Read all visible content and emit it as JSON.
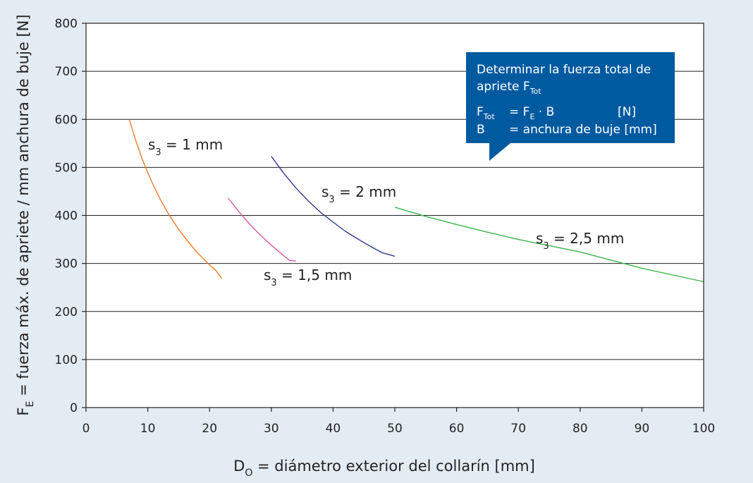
{
  "chart_data": {
    "type": "line",
    "xlabel": "D",
    "xlabel_sub": "O",
    "xlabel_rest": " = diámetro exterior del collarín [mm]",
    "ylabel": "F",
    "ylabel_sub": "E",
    "ylabel_rest": " = fuerza máx. de apriete / mm anchura de buje [N]",
    "xlim": [
      0,
      100
    ],
    "ylim": [
      0,
      800
    ],
    "x_ticks": [
      "0",
      "10",
      "20",
      "30",
      "40",
      "50",
      "60",
      "70",
      "80",
      "90",
      "100"
    ],
    "y_ticks": [
      "0",
      "100",
      "200",
      "300",
      "400",
      "500",
      "600",
      "700",
      "800"
    ],
    "grid": "horizontal",
    "series": [
      {
        "name": "s3 = 1 mm",
        "label_main": "s",
        "label_sub": "3",
        "label_rest": " = 1 mm",
        "color": "#f07c2a",
        "x": [
          7,
          8,
          9,
          10,
          11,
          12,
          13,
          14,
          15,
          16,
          17,
          18,
          19,
          20,
          21,
          22
        ],
        "y": [
          600,
          558,
          521,
          489,
          460,
          434,
          411,
          390,
          371,
          354,
          338,
          323,
          310,
          297,
          286,
          268
        ]
      },
      {
        "name": "s3 = 1,5 mm",
        "label_main": "s",
        "label_sub": "3",
        "label_rest": " = 1,5 mm",
        "color": "#d65aa8",
        "x": [
          23,
          24,
          25,
          26,
          27,
          28,
          29,
          30,
          31,
          32,
          33,
          34
        ],
        "y": [
          436,
          420,
          404,
          389,
          375,
          362,
          350,
          338,
          327,
          316,
          306,
          305
        ]
      },
      {
        "name": "s3 = 2 mm",
        "label_main": "s",
        "label_sub": "3",
        "label_rest": " = 2 mm",
        "color": "#2e3b8c",
        "x": [
          30,
          32,
          34,
          36,
          38,
          40,
          42,
          44,
          46,
          48,
          50
        ],
        "y": [
          523,
          488,
          457,
          430,
          406,
          386,
          367,
          351,
          336,
          322,
          315
        ]
      },
      {
        "name": "s3 = 2,5 mm",
        "label_main": "s",
        "label_sub": "3",
        "label_rest": " = 2,5 mm",
        "color": "#3cb54a",
        "x": [
          50,
          55,
          60,
          65,
          70,
          75,
          80,
          85,
          90,
          95,
          100
        ],
        "y": [
          417,
          398,
          381,
          365,
          350,
          337,
          324,
          307,
          290,
          276,
          262
        ]
      }
    ],
    "annotation": {
      "line1": "Determinar la fuerza total de",
      "line2_main": "apriete F",
      "line2_sub": "Tot",
      "row1_var": "F",
      "row1_var_sub": "Tot",
      "row1_eq": "= F",
      "row1_eq_sub": "E",
      "row1_eq_rest": " · B",
      "row1_unit": "[N]",
      "row2_var": "B",
      "row2_eq": "= anchura de buje [mm]",
      "background": "#005aa0"
    }
  }
}
